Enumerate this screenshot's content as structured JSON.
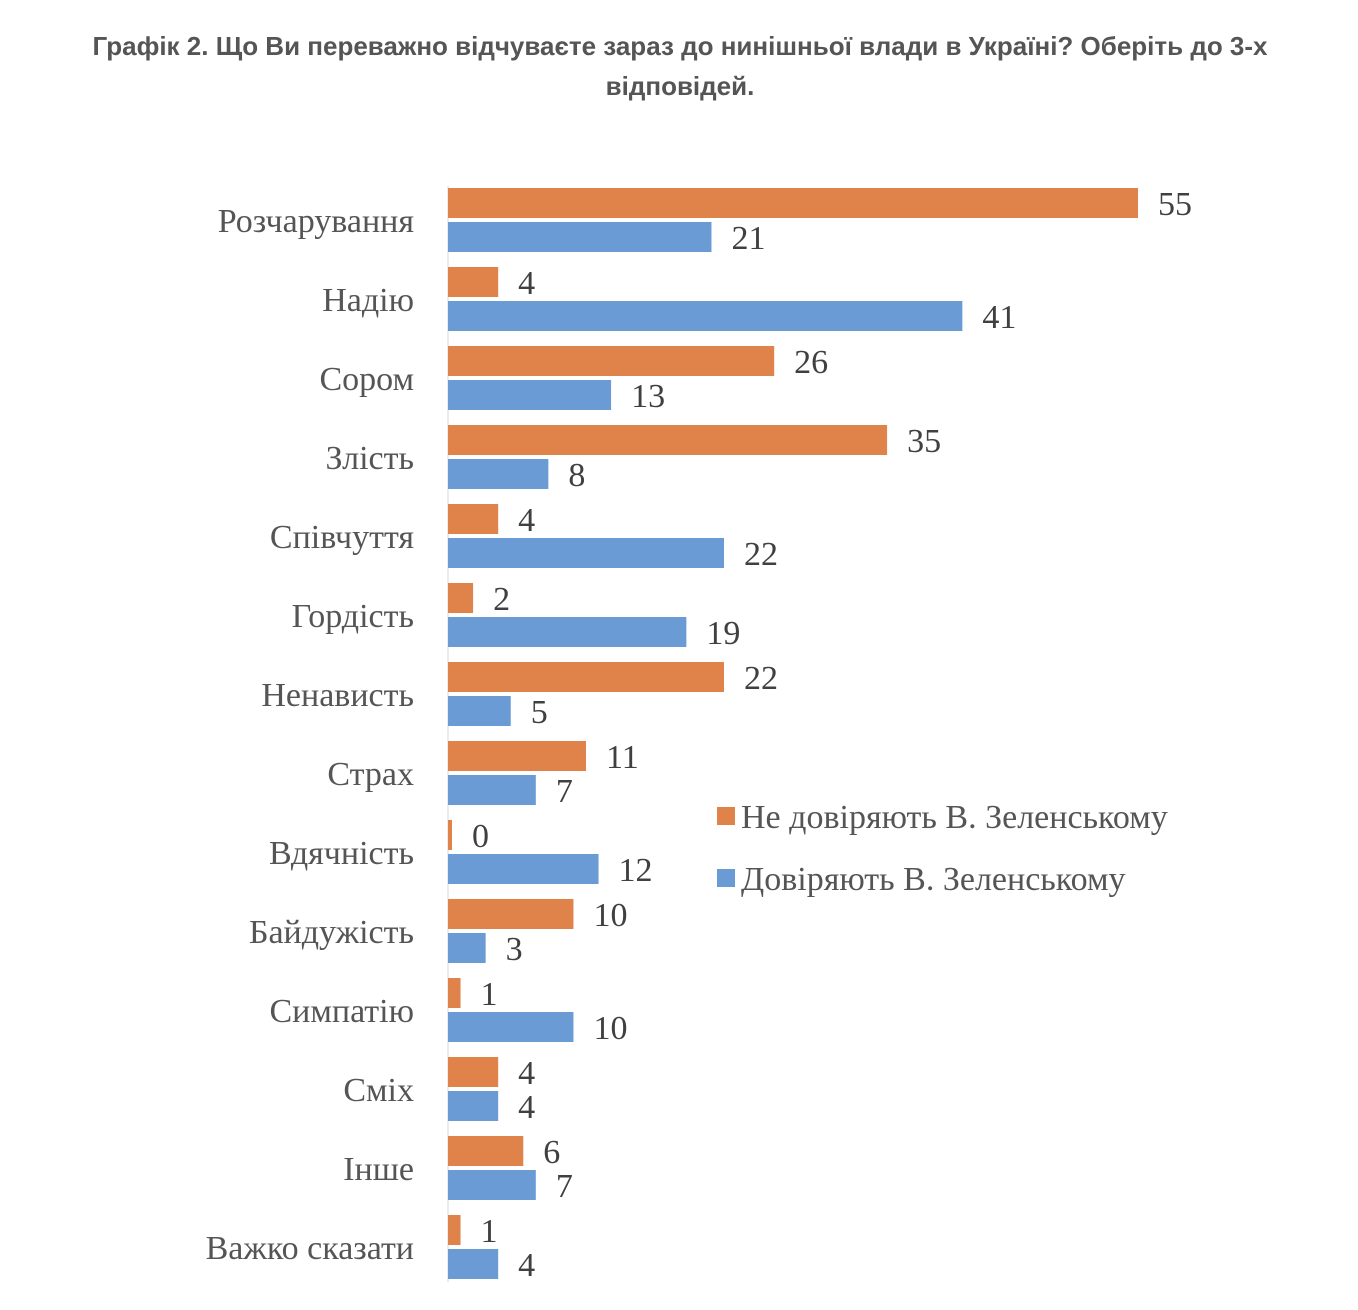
{
  "chart_data": {
    "type": "bar",
    "orientation": "horizontal",
    "title": "Графік 2. Що Ви переважно відчуваєте зараз до нинішньої влади в Україні? Оберіть до 3-х відповідей.",
    "categories": [
      "Розчарування",
      "Надію",
      "Сором",
      "Злість",
      "Співчуття",
      "Гордість",
      "Ненависть",
      "Страх",
      "Вдячність",
      "Байдужість",
      "Симпатію",
      "Сміх",
      "Інше",
      "Важко сказати"
    ],
    "series": [
      {
        "name": "Не довіряють В. Зеленському",
        "color": "#E0834A",
        "values": [
          55,
          4,
          26,
          35,
          4,
          2,
          22,
          11,
          0,
          10,
          1,
          4,
          6,
          1
        ]
      },
      {
        "name": "Довіряють В. Зеленському",
        "color": "#6B9BD4",
        "values": [
          21,
          41,
          13,
          8,
          22,
          19,
          5,
          7,
          12,
          3,
          10,
          4,
          7,
          4
        ]
      }
    ],
    "xlim": [
      0,
      55
    ],
    "grid": false,
    "legend_position": "right-middle"
  }
}
